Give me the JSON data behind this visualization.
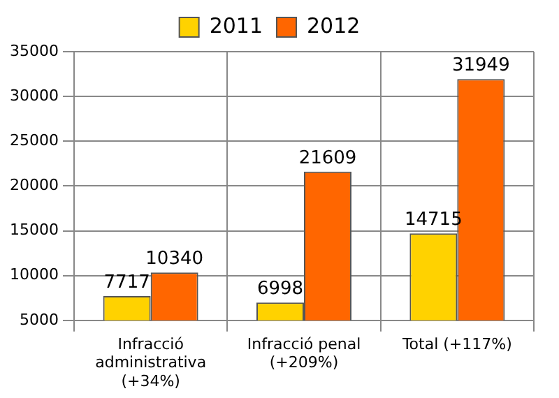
{
  "chart_data": {
    "type": "bar",
    "categories": [
      "Infracció\nadministrativa\n(+34%)",
      "Infracció penal\n(+209%)",
      "Total (+117%)"
    ],
    "series": [
      {
        "name": "2011",
        "color": "#ffd200",
        "values": [
          7717,
          6998,
          14715
        ]
      },
      {
        "name": "2012",
        "color": "#ff6600",
        "values": [
          10340,
          21609,
          31949
        ]
      }
    ],
    "ylim": [
      5000,
      35000
    ],
    "yticks": [
      5000,
      10000,
      15000,
      20000,
      25000,
      30000,
      35000
    ],
    "grid": true,
    "legend": "top",
    "data_labels": true
  }
}
